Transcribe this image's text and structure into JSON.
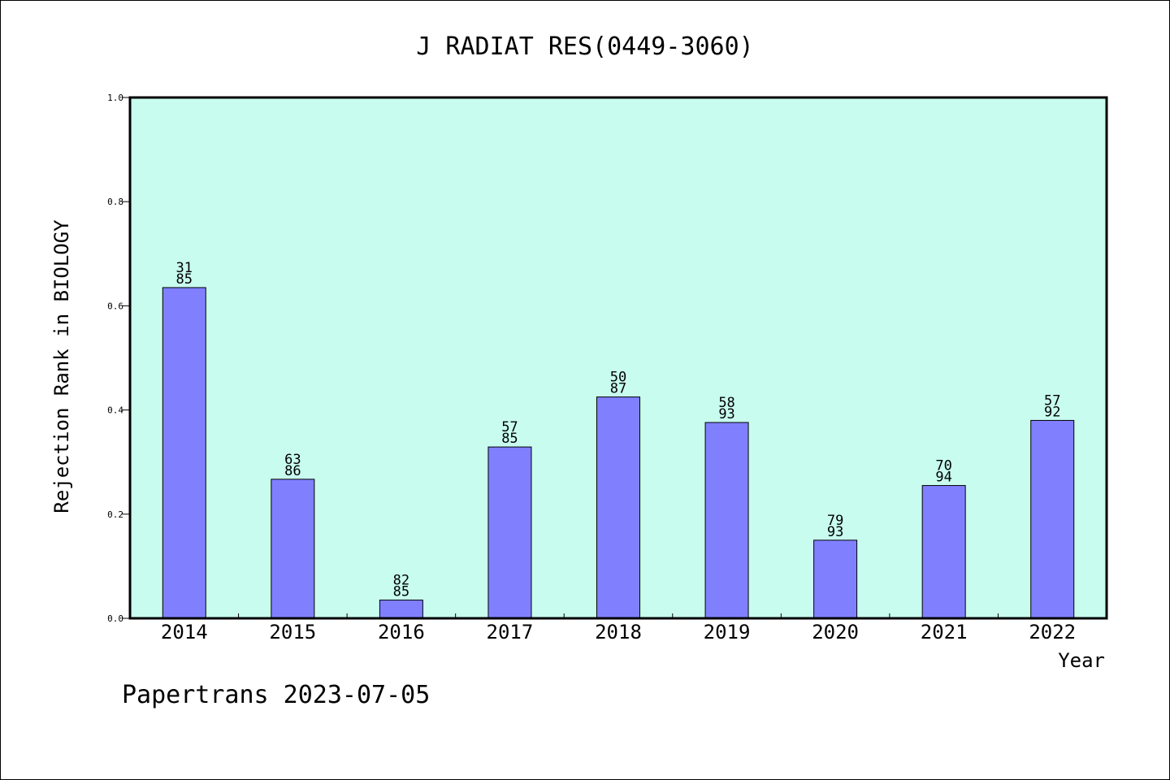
{
  "chart_data": {
    "type": "bar",
    "title": "J RADIAT RES(0449-3060)",
    "xlabel": "Year",
    "ylabel": "Rejection Rank in BIOLOGY",
    "ylim": [
      0,
      1.0
    ],
    "yticks": [
      "0.0",
      "0.2",
      "0.4",
      "0.6",
      "0.8",
      "1.0"
    ],
    "categories": [
      "2014",
      "2015",
      "2016",
      "2017",
      "2018",
      "2019",
      "2020",
      "2021",
      "2022"
    ],
    "values": [
      0.635,
      0.267,
      0.035,
      0.329,
      0.425,
      0.376,
      0.15,
      0.255,
      0.38
    ],
    "bar_labels": [
      [
        "31",
        "85"
      ],
      [
        "63",
        "86"
      ],
      [
        "82",
        "85"
      ],
      [
        "57",
        "85"
      ],
      [
        "50",
        "87"
      ],
      [
        "58",
        "93"
      ],
      [
        "79",
        "93"
      ],
      [
        "70",
        "94"
      ],
      [
        "57",
        "92"
      ]
    ],
    "grid": false,
    "colors": {
      "plot_background": "#c8fcef",
      "bar_fill": "#8080ff",
      "bar_stroke": "#000000"
    }
  },
  "footer": {
    "text": "Papertrans 2023-07-05"
  }
}
